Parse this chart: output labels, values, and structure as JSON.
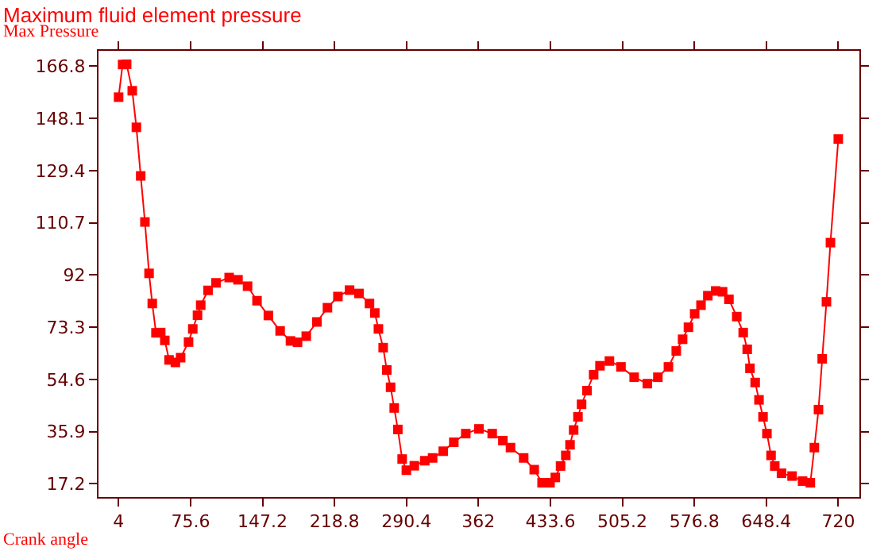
{
  "chart_data": {
    "type": "line",
    "title": "Maximum fluid element pressure",
    "ylabel": "Max Pressure",
    "xlabel": "Crank angle",
    "x": [
      4,
      8,
      12,
      17.6,
      21.7,
      26,
      30.2,
      34.3,
      37.5,
      41.2,
      45.9,
      50,
      54.2,
      60.5,
      65.7,
      73.6,
      77.8,
      82.5,
      85.7,
      93,
      100.9,
      114,
      122.8,
      132.3,
      141.7,
      153,
      164.7,
      175,
      182,
      190.7,
      201.3,
      211.8,
      222.2,
      233.8,
      243.2,
      253.6,
      258.9,
      262.5,
      267.2,
      270.8,
      274.6,
      278.2,
      281.8,
      286.1,
      290.3,
      298.2,
      308.6,
      316.4,
      327,
      337.5,
      349.4,
      362.5,
      375.7,
      386.3,
      393.9,
      407,
      417.5,
      425.3,
      433.2,
      438.5,
      443.7,
      448.9,
      453.1,
      456.7,
      461,
      464.6,
      470,
      476.6,
      482.9,
      492.3,
      503.8,
      516.9,
      530,
      540.5,
      551,
      558.8,
      565.1,
      570.9,
      577.1,
      583.4,
      590.2,
      598,
      604.9,
      611.2,
      619,
      625.4,
      629.4,
      632.1,
      637.3,
      641.1,
      645.1,
      649,
      653.1,
      656.8,
      663.5,
      674,
      684.5,
      692.2,
      696.2,
      700.3,
      704,
      708.2,
      712.2,
      720
    ],
    "series": [
      {
        "color": "#ff0000",
        "values": [
          155.7,
          167.4,
          167.5,
          158,
          144.9,
          127.5,
          111,
          92.6,
          81.8,
          71.3,
          71.4,
          68.6,
          61.6,
          60.7,
          62.4,
          68,
          72.7,
          77.6,
          81.2,
          86.5,
          89.2,
          91.1,
          90.3,
          88,
          82.8,
          77.5,
          72,
          68.4,
          67.9,
          70.1,
          75.2,
          80.3,
          84.3,
          86.6,
          85.4,
          81.8,
          78.4,
          72.7,
          66,
          58,
          51.8,
          44.4,
          36.7,
          26.1,
          22.1,
          23.7,
          25.5,
          26.5,
          28.9,
          32.1,
          35.2,
          36.9,
          35.2,
          32.7,
          30.2,
          26.5,
          22.3,
          17.6,
          17.6,
          19.5,
          23.6,
          27.4,
          31.2,
          36.5,
          41.2,
          45.7,
          50.6,
          56.3,
          59.5,
          61.2,
          59.1,
          55.4,
          53.1,
          55.4,
          59.1,
          64.8,
          69,
          73.3,
          78.1,
          81.2,
          84.6,
          86.3,
          86,
          83.3,
          77.1,
          71.4,
          65.4,
          58.6,
          53.5,
          47.3,
          41.2,
          35.2,
          27.4,
          23.6,
          21,
          20,
          18.2,
          17.6,
          30.2,
          43.8,
          62,
          82.4,
          103.6,
          140.7
        ]
      }
    ],
    "xlim": [
      -16,
      741
    ],
    "ylim": [
      12.5,
      172.3
    ],
    "xticks": [
      4,
      75.6,
      147.2,
      218.8,
      290.4,
      362,
      433.6,
      505.2,
      576.8,
      648.4,
      720
    ],
    "yticks": [
      17.2,
      35.9,
      54.6,
      73.3,
      92,
      110.7,
      129.4,
      148.1,
      166.8
    ],
    "marker": "square",
    "line_style": "solid"
  }
}
